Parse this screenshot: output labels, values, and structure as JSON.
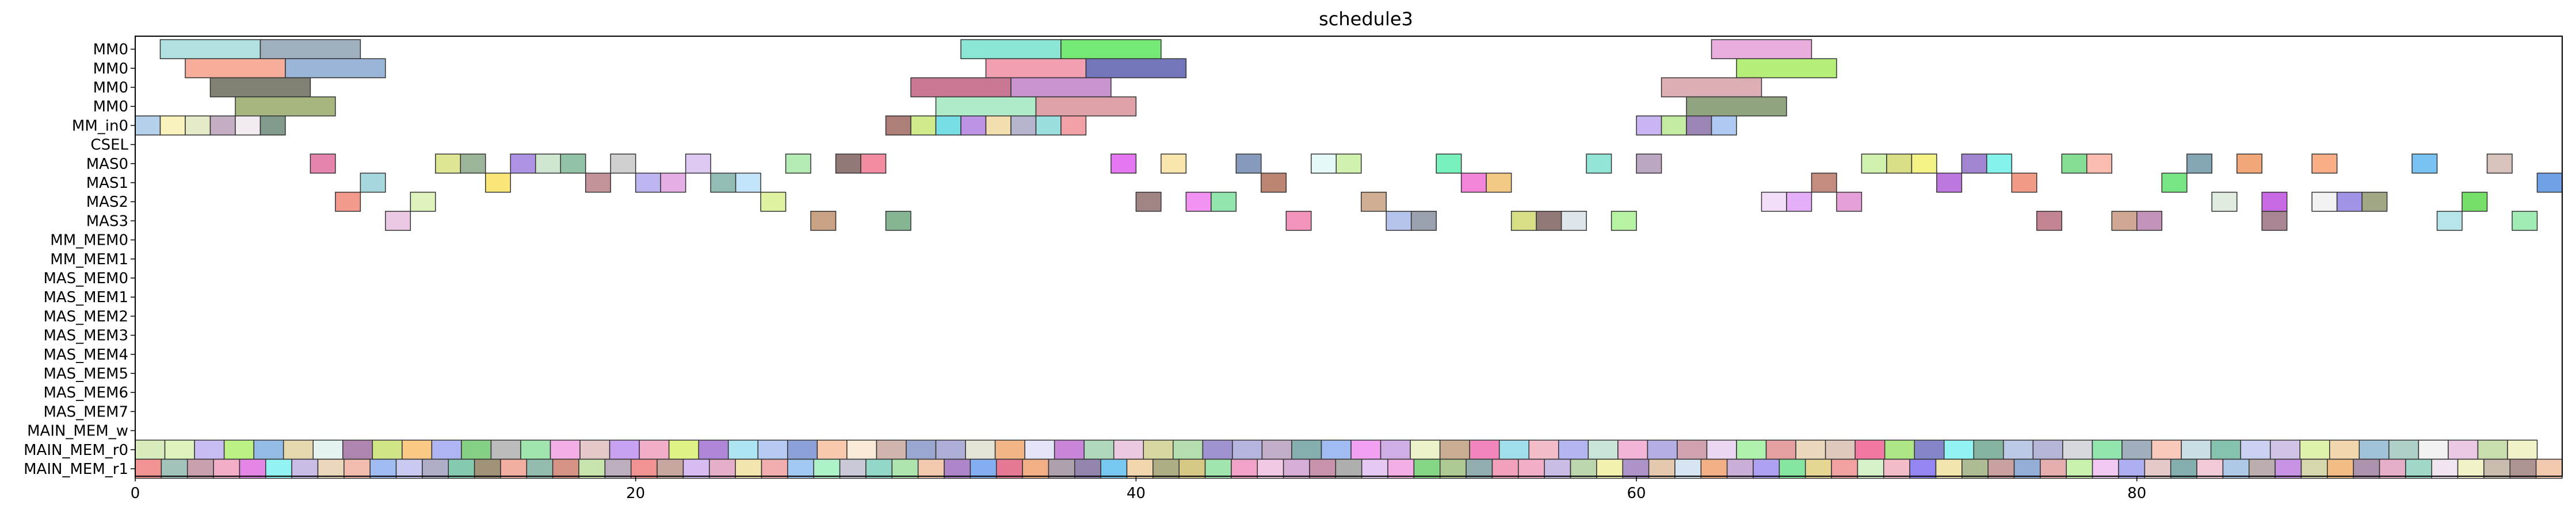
{
  "chart_data": {
    "type": "gantt",
    "title": "schedule3",
    "xlabel": "",
    "ylabel": "",
    "xlim": [
      0,
      97
    ],
    "x_ticks": [
      0,
      20,
      40,
      60,
      80
    ],
    "grid": false,
    "legend": "none",
    "rows": [
      "MM0",
      "MM0",
      "MM0",
      "MM0",
      "MM_in0",
      "CSEL",
      "MAS0",
      "MAS1",
      "MAS2",
      "MAS3",
      "MM_MEM0",
      "MM_MEM1",
      "MAS_MEM0",
      "MAS_MEM1",
      "MAS_MEM2",
      "MAS_MEM3",
      "MAS_MEM4",
      "MAS_MEM5",
      "MAS_MEM6",
      "MAS_MEM7",
      "MAIN_MEM_w",
      "MAIN_MEM_r0",
      "MAIN_MEM_r1"
    ],
    "tasks": [
      {
        "row": 0,
        "start": 1,
        "end": 5,
        "color": "#a3dcdc"
      },
      {
        "row": 0,
        "start": 5,
        "end": 9,
        "color": "#8ea2b4"
      },
      {
        "row": 0,
        "start": 33,
        "end": 37,
        "color": "#77e0cc"
      },
      {
        "row": 0,
        "start": 37,
        "end": 41,
        "color": "#5ce65c"
      },
      {
        "row": 0,
        "start": 63,
        "end": 67,
        "color": "#e6a0d8"
      },
      {
        "row": 1,
        "start": 2,
        "end": 6,
        "color": "#f4a08a"
      },
      {
        "row": 1,
        "start": 6,
        "end": 10,
        "color": "#88a8d0"
      },
      {
        "row": 1,
        "start": 34,
        "end": 38,
        "color": "#f08fa3"
      },
      {
        "row": 1,
        "start": 38,
        "end": 42,
        "color": "#5c5eb0"
      },
      {
        "row": 1,
        "start": 64,
        "end": 68,
        "color": "#a8ec60"
      },
      {
        "row": 2,
        "start": 3,
        "end": 7,
        "color": "#6b6b5c"
      },
      {
        "row": 2,
        "start": 31,
        "end": 35,
        "color": "#c06080"
      },
      {
        "row": 2,
        "start": 35,
        "end": 39,
        "color": "#c080c8"
      },
      {
        "row": 2,
        "start": 61,
        "end": 65,
        "color": "#d8a0a8"
      },
      {
        "row": 3,
        "start": 4,
        "end": 8,
        "color": "#98a868"
      },
      {
        "row": 3,
        "start": 32,
        "end": 36,
        "color": "#a0e8c0"
      },
      {
        "row": 3,
        "start": 36,
        "end": 40,
        "color": "#d89098"
      },
      {
        "row": 3,
        "start": 62,
        "end": 66,
        "color": "#7c9468"
      },
      {
        "row": 4,
        "start": 0,
        "end": 1,
        "color": "#a8c8e8"
      },
      {
        "row": 4,
        "start": 1,
        "end": 2,
        "color": "#f8f0b0"
      },
      {
        "row": 4,
        "start": 2,
        "end": 3,
        "color": "#e0e8c0"
      },
      {
        "row": 4,
        "start": 3,
        "end": 4,
        "color": "#b8a0b8"
      },
      {
        "row": 4,
        "start": 4,
        "end": 5,
        "color": "#f0e8f0"
      },
      {
        "row": 4,
        "start": 5,
        "end": 6,
        "color": "#6c8878"
      },
      {
        "row": 4,
        "start": 30,
        "end": 31,
        "color": "#a06860"
      },
      {
        "row": 4,
        "start": 31,
        "end": 32,
        "color": "#c8e878"
      },
      {
        "row": 4,
        "start": 32,
        "end": 33,
        "color": "#60d8e0"
      },
      {
        "row": 4,
        "start": 33,
        "end": 34,
        "color": "#b080e0"
      },
      {
        "row": 4,
        "start": 34,
        "end": 35,
        "color": "#f0d8a0"
      },
      {
        "row": 4,
        "start": 35,
        "end": 36,
        "color": "#a8a8c8"
      },
      {
        "row": 4,
        "start": 36,
        "end": 37,
        "color": "#88d8d8"
      },
      {
        "row": 4,
        "start": 37,
        "end": 38,
        "color": "#f09098"
      },
      {
        "row": 4,
        "start": 60,
        "end": 61,
        "color": "#c0a8f0"
      },
      {
        "row": 4,
        "start": 61,
        "end": 62,
        "color": "#b8e890"
      },
      {
        "row": 4,
        "start": 62,
        "end": 63,
        "color": "#8870a8"
      },
      {
        "row": 4,
        "start": 63,
        "end": 64,
        "color": "#a0c0f0"
      },
      {
        "row": 6,
        "start": 7,
        "end": 8,
        "color": "#e070a0"
      },
      {
        "row": 6,
        "start": 12,
        "end": 13,
        "color": "#d8e080"
      },
      {
        "row": 6,
        "start": 13,
        "end": 14,
        "color": "#88a888"
      },
      {
        "row": 6,
        "start": 15,
        "end": 16,
        "color": "#a080e0"
      },
      {
        "row": 6,
        "start": 16,
        "end": 17,
        "color": "#c8e0c8"
      },
      {
        "row": 6,
        "start": 17,
        "end": 18,
        "color": "#80b898"
      },
      {
        "row": 6,
        "start": 19,
        "end": 20,
        "color": "#c8c8c8"
      },
      {
        "row": 6,
        "start": 22,
        "end": 23,
        "color": "#d8c0f0"
      },
      {
        "row": 6,
        "start": 26,
        "end": 27,
        "color": "#a8e8a8"
      },
      {
        "row": 6,
        "start": 28,
        "end": 29,
        "color": "#806060"
      },
      {
        "row": 6,
        "start": 29,
        "end": 30,
        "color": "#f07890"
      },
      {
        "row": 6,
        "start": 39,
        "end": 40,
        "color": "#e060f0"
      },
      {
        "row": 6,
        "start": 41,
        "end": 42,
        "color": "#f8e0a0"
      },
      {
        "row": 6,
        "start": 44,
        "end": 45,
        "color": "#7088b0"
      },
      {
        "row": 6,
        "start": 47,
        "end": 48,
        "color": "#e0f8f8"
      },
      {
        "row": 6,
        "start": 48,
        "end": 49,
        "color": "#c8f0a0"
      },
      {
        "row": 6,
        "start": 52,
        "end": 53,
        "color": "#60f0b0"
      },
      {
        "row": 6,
        "start": 58,
        "end": 59,
        "color": "#80e0d0"
      },
      {
        "row": 6,
        "start": 60,
        "end": 61,
        "color": "#b098b8"
      },
      {
        "row": 6,
        "start": 69,
        "end": 70,
        "color": "#c8f0a0"
      },
      {
        "row": 6,
        "start": 70,
        "end": 71,
        "color": "#d0d870"
      },
      {
        "row": 6,
        "start": 71,
        "end": 72,
        "color": "#f0f070"
      },
      {
        "row": 6,
        "start": 73,
        "end": 74,
        "color": "#9070c8"
      },
      {
        "row": 6,
        "start": 74,
        "end": 75,
        "color": "#70f0e8"
      },
      {
        "row": 6,
        "start": 77,
        "end": 78,
        "color": "#70d880"
      },
      {
        "row": 6,
        "start": 78,
        "end": 79,
        "color": "#f8b0a0"
      },
      {
        "row": 6,
        "start": 82,
        "end": 83,
        "color": "#7098a8"
      },
      {
        "row": 6,
        "start": 84,
        "end": 85,
        "color": "#f09860"
      },
      {
        "row": 6,
        "start": 87,
        "end": 88,
        "color": "#f8a070"
      },
      {
        "row": 6,
        "start": 91,
        "end": 92,
        "color": "#60b8f0"
      },
      {
        "row": 6,
        "start": 94,
        "end": 95,
        "color": "#d0b8b0"
      },
      {
        "row": 7,
        "start": 9,
        "end": 10,
        "color": "#98d0d8"
      },
      {
        "row": 7,
        "start": 14,
        "end": 15,
        "color": "#f8e060"
      },
      {
        "row": 7,
        "start": 18,
        "end": 19,
        "color": "#b88088"
      },
      {
        "row": 7,
        "start": 20,
        "end": 21,
        "color": "#b0a8f0"
      },
      {
        "row": 7,
        "start": 21,
        "end": 22,
        "color": "#e0a0e0"
      },
      {
        "row": 7,
        "start": 23,
        "end": 24,
        "color": "#80b0a8"
      },
      {
        "row": 7,
        "start": 24,
        "end": 25,
        "color": "#b8e0f8"
      },
      {
        "row": 7,
        "start": 45,
        "end": 46,
        "color": "#b07058"
      },
      {
        "row": 7,
        "start": 53,
        "end": 54,
        "color": "#f070d0"
      },
      {
        "row": 7,
        "start": 54,
        "end": 55,
        "color": "#f0c070"
      },
      {
        "row": 7,
        "start": 67,
        "end": 68,
        "color": "#b87868"
      },
      {
        "row": 7,
        "start": 72,
        "end": 73,
        "color": "#b060d8"
      },
      {
        "row": 7,
        "start": 75,
        "end": 76,
        "color": "#f08870"
      },
      {
        "row": 7,
        "start": 81,
        "end": 82,
        "color": "#60e070"
      },
      {
        "row": 7,
        "start": 96,
        "end": 97,
        "color": "#5890e0"
      },
      {
        "row": 8,
        "start": 8,
        "end": 9,
        "color": "#f08878"
      },
      {
        "row": 8,
        "start": 11,
        "end": 12,
        "color": "#d8f0b0"
      },
      {
        "row": 8,
        "start": 25,
        "end": 26,
        "color": "#d8f090"
      },
      {
        "row": 8,
        "start": 40,
        "end": 41,
        "color": "#907070"
      },
      {
        "row": 8,
        "start": 42,
        "end": 43,
        "color": "#f080f0"
      },
      {
        "row": 8,
        "start": 43,
        "end": 44,
        "color": "#80e0a0"
      },
      {
        "row": 8,
        "start": 49,
        "end": 50,
        "color": "#c8a080"
      },
      {
        "row": 8,
        "start": 65,
        "end": 66,
        "color": "#f0d8f8"
      },
      {
        "row": 8,
        "start": 66,
        "end": 67,
        "color": "#e0a0f8"
      },
      {
        "row": 8,
        "start": 68,
        "end": 69,
        "color": "#e090d0"
      },
      {
        "row": 8,
        "start": 83,
        "end": 84,
        "color": "#d8e8d8"
      },
      {
        "row": 8,
        "start": 85,
        "end": 86,
        "color": "#c050e0"
      },
      {
        "row": 8,
        "start": 87,
        "end": 88,
        "color": "#f0f0f0"
      },
      {
        "row": 8,
        "start": 88,
        "end": 89,
        "color": "#9080e0"
      },
      {
        "row": 8,
        "start": 89,
        "end": 90,
        "color": "#909870"
      },
      {
        "row": 8,
        "start": 93,
        "end": 94,
        "color": "#60d850"
      },
      {
        "row": 9,
        "start": 10,
        "end": 11,
        "color": "#e8c0e0"
      },
      {
        "row": 9,
        "start": 27,
        "end": 28,
        "color": "#c09070"
      },
      {
        "row": 9,
        "start": 30,
        "end": 31,
        "color": "#70a880"
      },
      {
        "row": 9,
        "start": 46,
        "end": 47,
        "color": "#f080b0"
      },
      {
        "row": 9,
        "start": 50,
        "end": 51,
        "color": "#a8b8e8"
      },
      {
        "row": 9,
        "start": 51,
        "end": 52,
        "color": "#8890a0"
      },
      {
        "row": 9,
        "start": 55,
        "end": 56,
        "color": "#d0d870"
      },
      {
        "row": 9,
        "start": 56,
        "end": 57,
        "color": "#806060"
      },
      {
        "row": 9,
        "start": 57,
        "end": 58,
        "color": "#d8e0e8"
      },
      {
        "row": 9,
        "start": 59,
        "end": 60,
        "color": "#a8f090"
      },
      {
        "row": 9,
        "start": 76,
        "end": 77,
        "color": "#b87080"
      },
      {
        "row": 9,
        "start": 79,
        "end": 80,
        "color": "#c89880"
      },
      {
        "row": 9,
        "start": 80,
        "end": 81,
        "color": "#b880b0"
      },
      {
        "row": 9,
        "start": 85,
        "end": 86,
        "color": "#987080"
      },
      {
        "row": 9,
        "start": 92,
        "end": 93,
        "color": "#a8e0e8"
      },
      {
        "row": 9,
        "start": 95,
        "end": 96,
        "color": "#90e8a8"
      }
    ],
    "stream_rows": [
      {
        "row": 21,
        "start": 0,
        "end": 96,
        "colors": [
          "#d0e8b0",
          "#d8f0b0",
          "#c0b0f0",
          "#b0f070",
          "#80b0e0",
          "#e0d0a0",
          "#e0f0f0",
          "#a070a0",
          "#c8e070",
          "#f8c070",
          "#a0a8f0",
          "#70c870",
          "#b0b0b0",
          "#90e0a0",
          "#f0a0e0",
          "#e0c0c0",
          "#c090f0",
          "#f0a0c0",
          "#d8f070",
          "#a070d0",
          "#a0e0f0",
          "#a8c0f0",
          "#7890d0",
          "#f8c0a0",
          "#f8e8d0",
          "#c8a8a0",
          "#8898c8",
          "#a0a0d0",
          "#e0e0d0",
          "#f0a870",
          "#e0e0f8",
          "#c070d0",
          "#a0d0b0",
          "#e8c0d8",
          "#d0d090",
          "#a8d8a0",
          "#9080c8",
          "#a8a8d8",
          "#b8a0c0",
          "#70a0a0",
          "#90b0f0",
          "#f090f0",
          "#c8a0e0",
          "#e8f0c0",
          "#c0a080",
          "#f070b0",
          "#90d8e8",
          "#f0b0c0",
          "#a8a8f0",
          "#c0e0d0",
          "#f0a8d0",
          "#a8a0e0",
          "#c890a0",
          "#e8d0f0",
          "#a0f0a0",
          "#e09090",
          "#e8d0b0",
          "#d8c0b0",
          "#f06090",
          "#a0e070",
          "#7070c0",
          "#80f0f0",
          "#70a890",
          "#b0c0e0",
          "#a8a8d0",
          "#d0d0d8",
          "#80e0a0",
          "#90a0b0",
          "#f8c0b0",
          "#c0d8e0",
          "#70b8a0",
          "#c0c8f0",
          "#c8b8e0",
          "#d8f0a0",
          "#f0d0a0",
          "#90b8d0",
          "#a0c8c0",
          "#f0f0f0",
          "#e8c0e0",
          "#c0d8a0",
          "#f0f0c0"
        ]
      },
      {
        "row": 22,
        "start": 0,
        "end": 97,
        "colors": [
          "#f08080",
          "#90b8b0",
          "#c090a0",
          "#f0a0c0",
          "#e070e0",
          "#80f0f0",
          "#c0b0e0",
          "#e8d0b0",
          "#f0b0a0",
          "#90b0f0",
          "#c0c0f0",
          "#a0a0c0",
          "#70c0a0",
          "#908060",
          "#f0a090",
          "#80b0a0",
          "#d08070",
          "#c0e0a0",
          "#b0a0b0",
          "#f08080",
          "#c09890",
          "#d0b0f0",
          "#e0a0c0",
          "#f0e0a0",
          "#f0a0a0",
          "#90c0f0",
          "#a0f0c0",
          "#c0c0d0",
          "#80d0c0",
          "#a0e0a0",
          "#f0c0a0",
          "#a070c0",
          "#70a0f0",
          "#e06080",
          "#f0a070",
          "#a090a0",
          "#8070a0",
          "#60c0f0",
          "#f0d0a0",
          "#a0a070",
          "#d0c070",
          "#90e0a0",
          "#f090c0",
          "#f0c0e0",
          "#d0a0d0",
          "#c080a0",
          "#a0a0a0",
          "#e0c0f0",
          "#f0a0e0",
          "#70d070",
          "#a0c080",
          "#80a0a0",
          "#f090b0",
          "#f0a0c0",
          "#c0b0e0",
          "#b0d0a0",
          "#f0f0a0",
          "#a080c0",
          "#e0c0a0",
          "#d0e0f0",
          "#f0a070",
          "#c0a0d0",
          "#a090f0",
          "#70e090",
          "#e0d080",
          "#f09090",
          "#d0f0c0",
          "#f0b0c0",
          "#8070f0",
          "#f0e0a0",
          "#a0b080",
          "#c09090",
          "#80a0d0",
          "#e0a0a0",
          "#c0f0a0",
          "#f0c0f0",
          "#a0a0f0",
          "#e0c0c0",
          "#70a0a0",
          "#f0c0d0",
          "#a0c0e0",
          "#b0a0a0",
          "#c080e0",
          "#d0d0a0",
          "#f0b070",
          "#a080a0",
          "#e0a0c0",
          "#90d0c0",
          "#f0e0f0",
          "#f0f0c0",
          "#c0b0a0",
          "#a08080",
          "#f0c0a0"
        ]
      }
    ]
  }
}
